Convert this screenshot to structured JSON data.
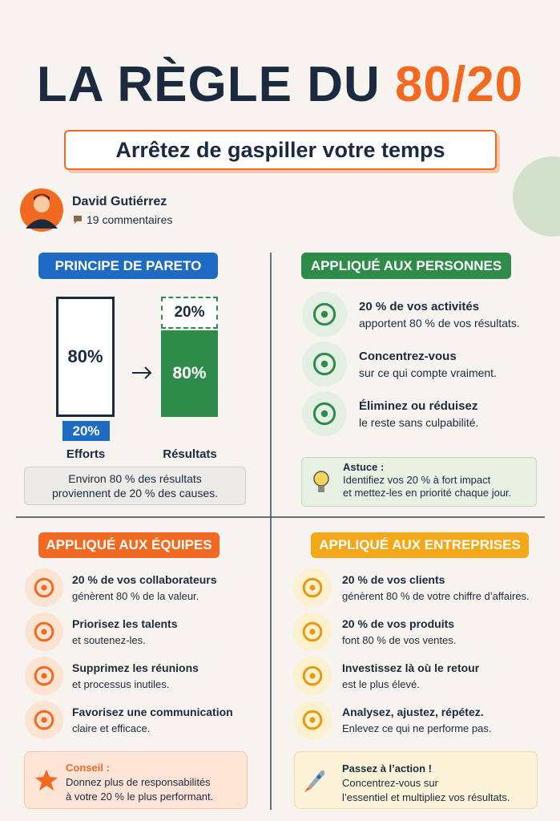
{
  "header": {
    "title_main": "LA RÈGLE DU",
    "title_accent": "80/20",
    "subtitle": "Arrêtez de gaspiller votre temps"
  },
  "author": {
    "name": "David Gutiérrez",
    "comments": "19 commentaires"
  },
  "pareto": {
    "heading": "PRINCIPE DE PARETO",
    "efforts_big": "80%",
    "efforts_small": "20%",
    "efforts_label": "Efforts",
    "results_top": "20%",
    "results_bottom": "80%",
    "results_label": "Résultats",
    "note": [
      "Environ 80 % des résultats",
      "proviennent de 20 % des causes."
    ]
  },
  "people": {
    "heading": "APPLIQUÉ AUX PERSONNES",
    "items": [
      {
        "title": "20 % de vos activités",
        "text": "apportent 80 % de vos résultats."
      },
      {
        "title": "Concentrez-vous",
        "text": "sur ce qui compte vraiment."
      },
      {
        "title": "Éliminez ou réduisez",
        "text": "le reste sans culpabilité."
      }
    ],
    "tip": {
      "label": "Astuce :",
      "lines": [
        "Identifiez vos 20 % à fort impact",
        "et mettez-les en priorité chaque jour."
      ]
    }
  },
  "teams": {
    "heading": "APPLIQUÉ AUX ÉQUIPES",
    "items": [
      {
        "title": "20 % de vos collaborateurs",
        "text": "génèrent 80 % de la valeur."
      },
      {
        "title": "Priorisez les talents",
        "text": "et soutenez-les."
      },
      {
        "title": "Supprimez les réunions",
        "text": "et processus inutiles."
      },
      {
        "title": "Favorisez une communication",
        "text": "claire et efficace."
      }
    ],
    "tip": {
      "label": "Conseil :",
      "lines": [
        "Donnez plus de responsabilités",
        "à votre 20 % le plus performant."
      ]
    }
  },
  "business": {
    "heading": "APPLIQUÉ AUX ENTREPRISES",
    "items": [
      {
        "title": "20 % de vos clients",
        "text": "génèrent 80 % de votre chiffre d’affaires."
      },
      {
        "title": "20 % de vos produits",
        "text": "font 80 % de vos ventes."
      },
      {
        "title": "Investissez là où le retour",
        "text": "est le plus élevé."
      },
      {
        "title": "Analysez, ajustez, répétez.",
        "text": "Enlevez ce qui ne performe pas."
      }
    ],
    "tip": {
      "label": "Passez à l’action !",
      "lines": [
        "Concentrez-vous sur",
        "l’essentiel et multipliez vos résultats."
      ]
    }
  }
}
